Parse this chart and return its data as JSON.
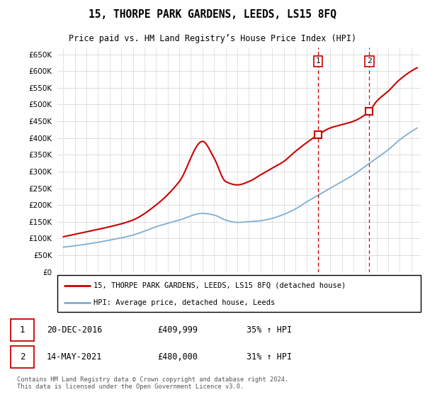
{
  "title": "15, THORPE PARK GARDENS, LEEDS, LS15 8FQ",
  "subtitle": "Price paid vs. HM Land Registry’s House Price Index (HPI)",
  "property_label": "15, THORPE PARK GARDENS, LEEDS, LS15 8FQ (detached house)",
  "hpi_label": "HPI: Average price, detached house, Leeds",
  "footer": "Contains HM Land Registry data © Crown copyright and database right 2024.\nThis data is licensed under the Open Government Licence v3.0.",
  "sale1_date": "20-DEC-2016",
  "sale1_price": "£409,999",
  "sale1_hpi": "35% ↑ HPI",
  "sale2_date": "14-MAY-2021",
  "sale2_price": "£480,000",
  "sale2_hpi": "31% ↑ HPI",
  "sale1_x": 2016.97,
  "sale2_x": 2021.37,
  "sale1_y": 409999,
  "sale2_y": 480000,
  "ylim": [
    0,
    670000
  ],
  "yticks": [
    0,
    50000,
    100000,
    150000,
    200000,
    250000,
    300000,
    350000,
    400000,
    450000,
    500000,
    550000,
    600000,
    650000
  ],
  "property_color": "#cc0000",
  "hpi_color": "#7eaed4",
  "grid_color": "#d8d8d8",
  "xmin": 1994.5,
  "xmax": 2025.8
}
